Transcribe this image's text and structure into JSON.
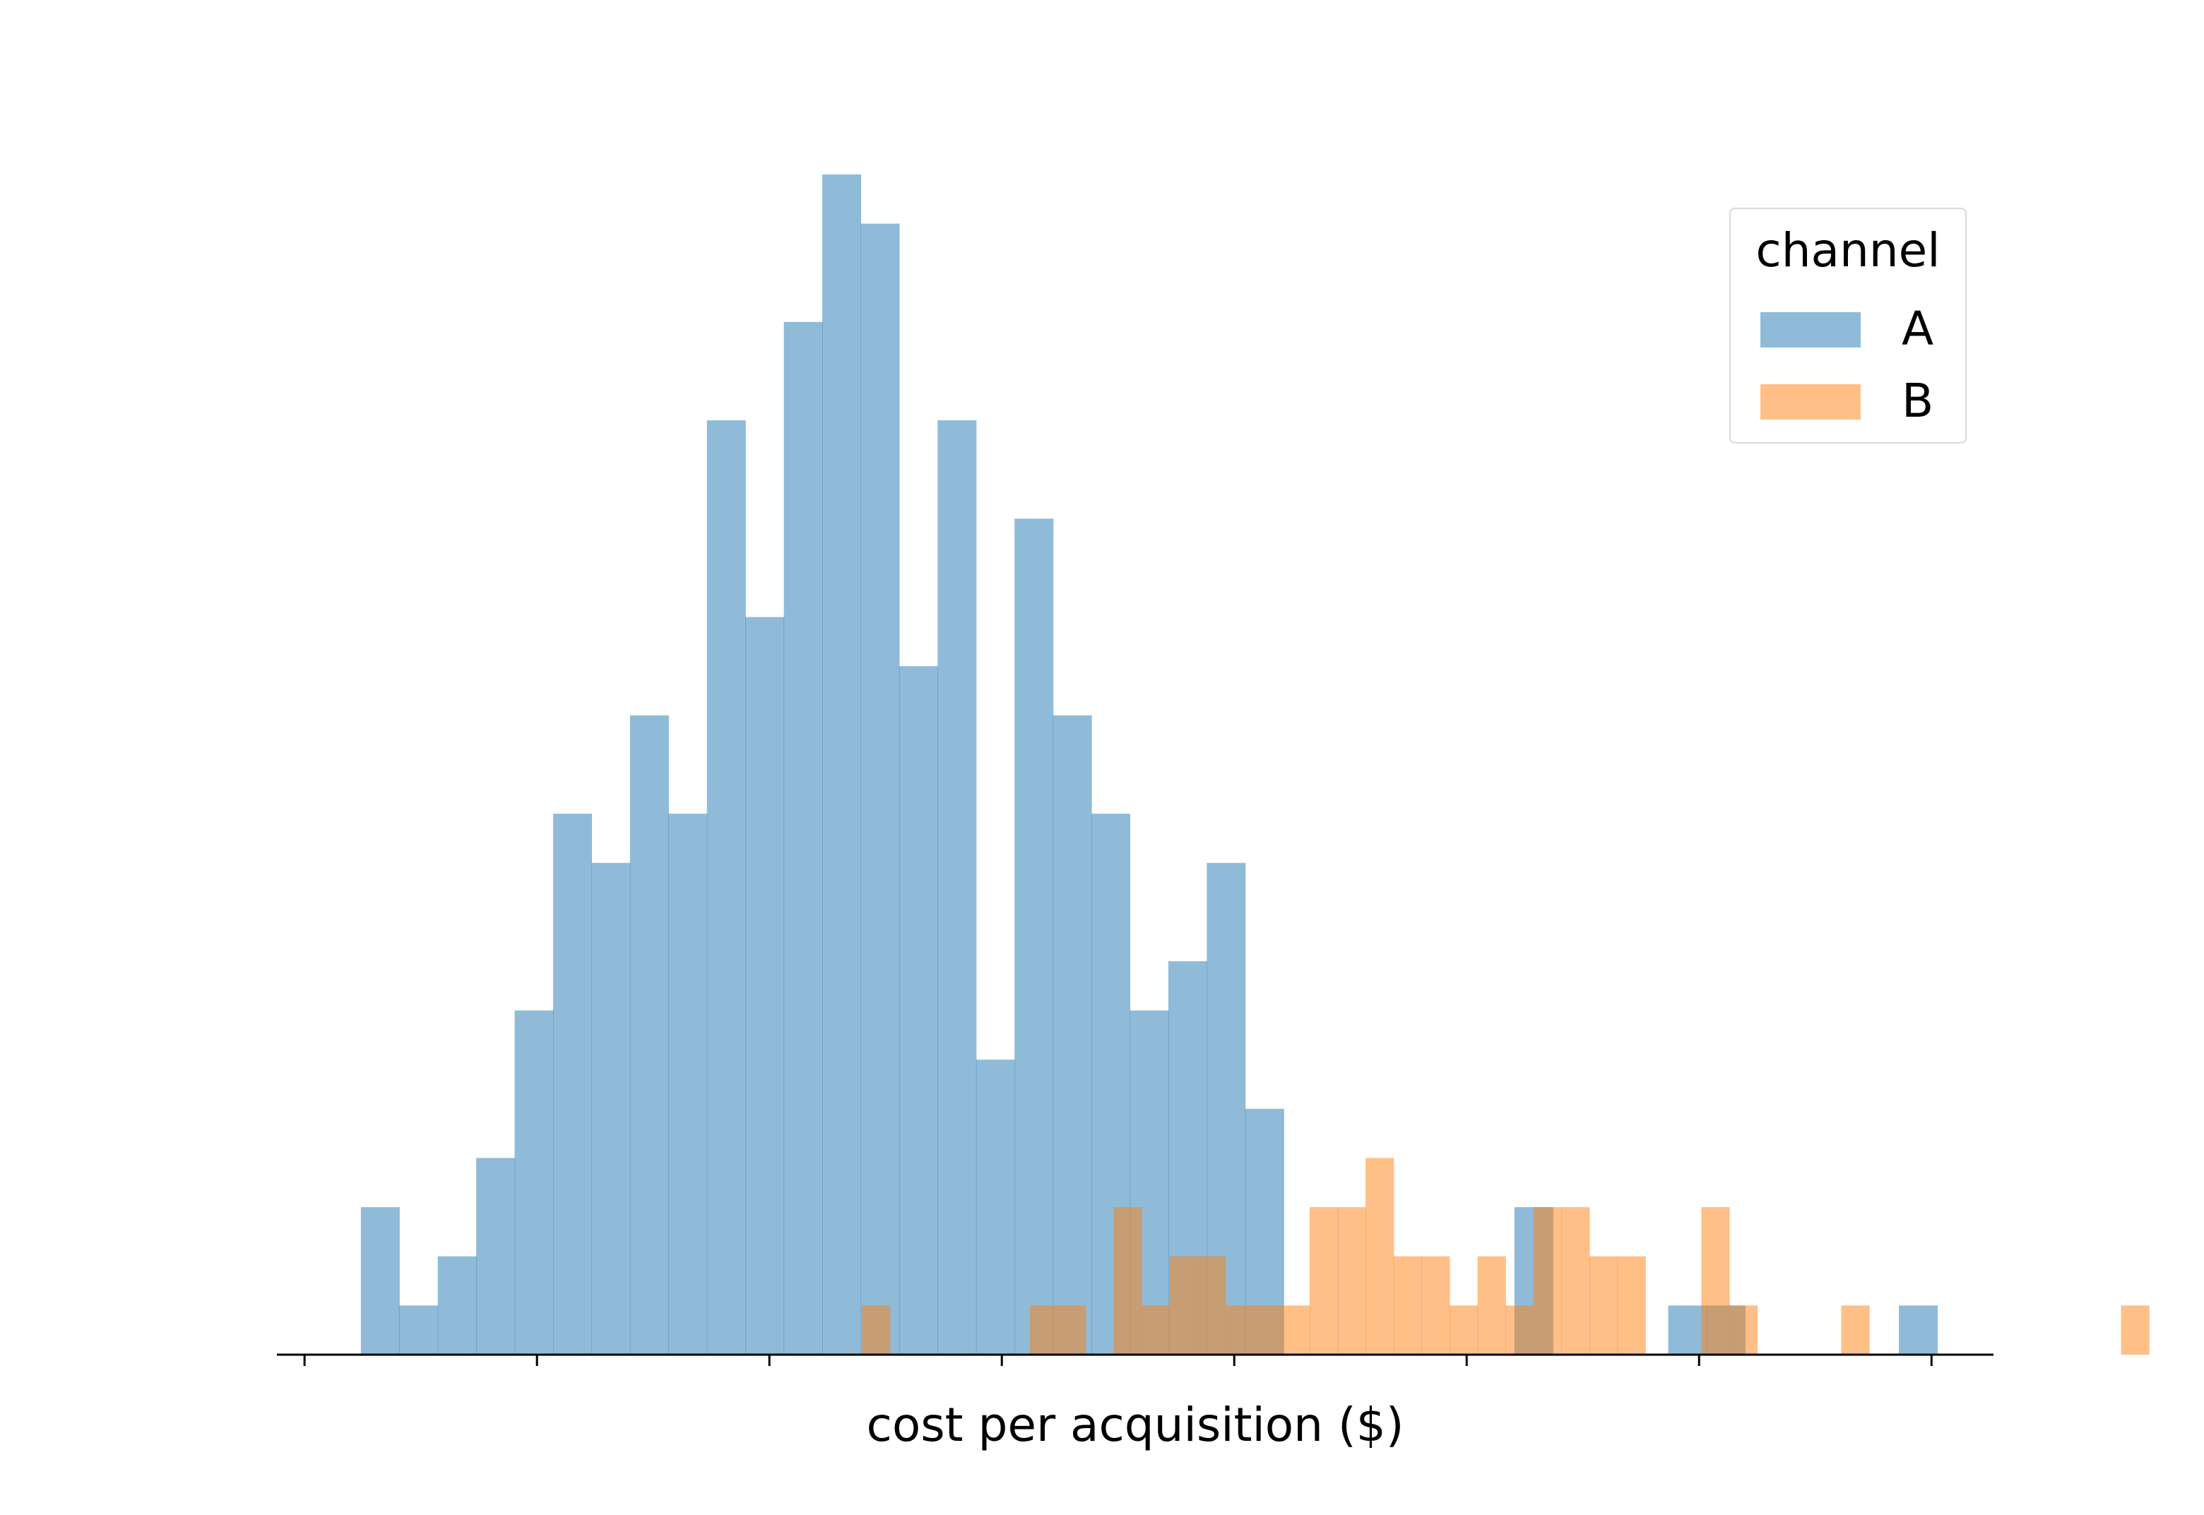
{
  "chart_data": {
    "type": "histogram",
    "xlabel": "cost per acquisition ($)",
    "ylabel": "",
    "xticks_labeled": false,
    "yaxis_visible": false,
    "legend": {
      "title": "channel",
      "placement": "top-right"
    },
    "ylim": [
      0,
      24.1
    ],
    "xlim": [
      0,
      1
    ],
    "series": [
      {
        "name": "A",
        "color": "#1f77b4",
        "alpha": 0.5,
        "bin_start": 0.0489,
        "bin_width": 0.0224,
        "counts": [
          3,
          1,
          2,
          4,
          7,
          11,
          10,
          13,
          11,
          19,
          15,
          21,
          24,
          23,
          14,
          19,
          6,
          17,
          13,
          11,
          7,
          8,
          10,
          5,
          0,
          0,
          0,
          0,
          0,
          0,
          3,
          0,
          0,
          0,
          1,
          1,
          0,
          0,
          0,
          0,
          1
        ]
      },
      {
        "name": "B",
        "color": "#ff7f0e",
        "alpha": 0.5,
        "bin_start": 0.3408,
        "bin_width": 0.0163,
        "counts": [
          1,
          0,
          0,
          0,
          0,
          0,
          1,
          1,
          0,
          3,
          1,
          2,
          2,
          1,
          1,
          1,
          3,
          3,
          4,
          2,
          2,
          1,
          2,
          1,
          3,
          3,
          2,
          2,
          0,
          0,
          3,
          1,
          0,
          0,
          0,
          1,
          0,
          0,
          0,
          0,
          0,
          0,
          0,
          0,
          0,
          1
        ]
      }
    ]
  }
}
